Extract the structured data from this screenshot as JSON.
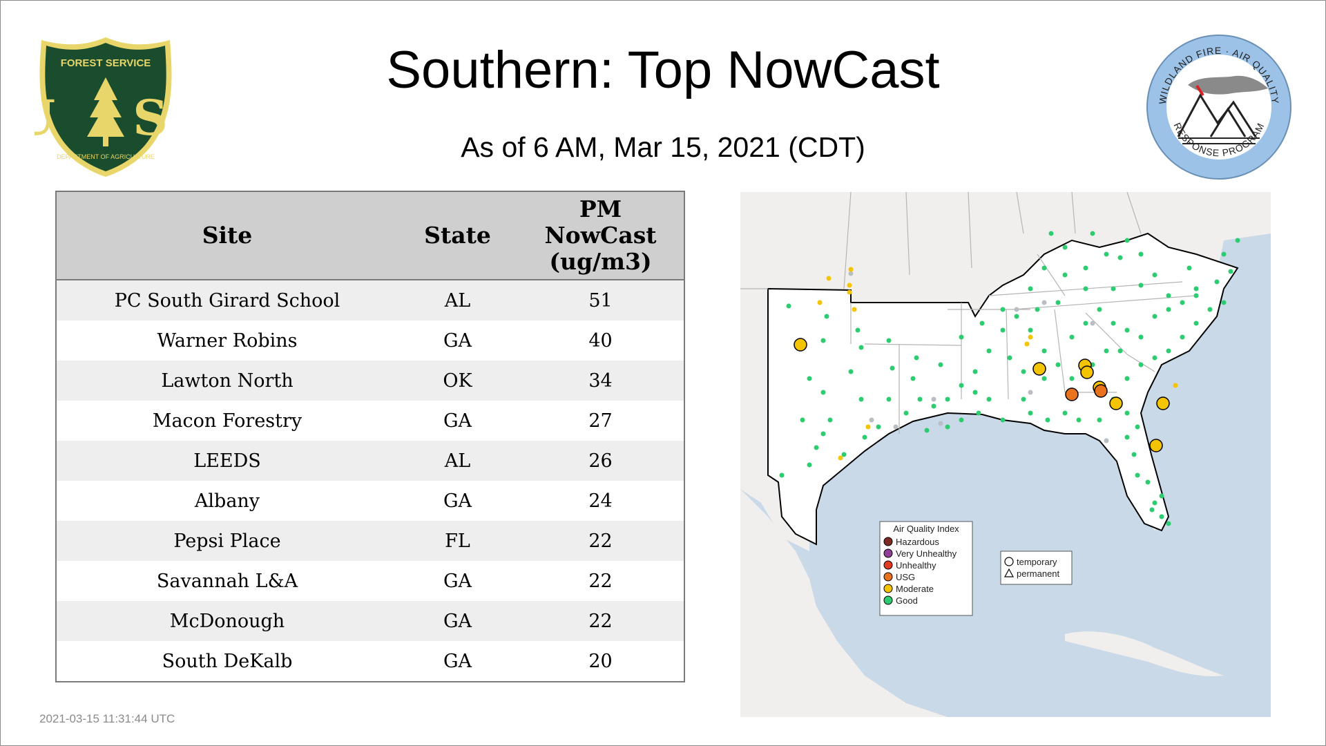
{
  "header": {
    "title": "Southern: Top NowCast",
    "subtitle": "As of  6 AM, Mar 15, 2021 (CDT)"
  },
  "logo_left": {
    "icon": "forest-service-shield-icon",
    "top_text": "FOREST SERVICE",
    "letters": "U S",
    "bottom_text": "DEPARTMENT OF AGRICULTURE",
    "colors": {
      "shield": "#1a4d2e",
      "accent": "#e8d66a"
    }
  },
  "logo_right": {
    "icon": "wildland-fire-air-quality-seal-icon",
    "top_text": "WILDLAND FIRE · AIR QUALITY",
    "bottom_text": "RESPONSE PROGRAM",
    "colors": {
      "ring": "#9cc2e8"
    }
  },
  "table": {
    "headers": {
      "site": "Site",
      "state": "State",
      "pm_line1": "PM",
      "pm_line2": "NowCast",
      "pm_line3": "(ug/m3)"
    },
    "rows": [
      {
        "site": "PC South Girard School",
        "state": "AL",
        "value": "51"
      },
      {
        "site": "Warner Robins",
        "state": "GA",
        "value": "40"
      },
      {
        "site": "Lawton North",
        "state": "OK",
        "value": "34"
      },
      {
        "site": "Macon Forestry",
        "state": "GA",
        "value": "27"
      },
      {
        "site": "LEEDS",
        "state": "AL",
        "value": "26"
      },
      {
        "site": "Albany",
        "state": "GA",
        "value": "24"
      },
      {
        "site": "Pepsi Place",
        "state": "FL",
        "value": "22"
      },
      {
        "site": "Savannah L&A",
        "state": "GA",
        "value": "22"
      },
      {
        "site": "McDonough",
        "state": "GA",
        "value": "22"
      },
      {
        "site": "South DeKalb",
        "state": "GA",
        "value": "20"
      }
    ]
  },
  "map": {
    "legend": {
      "title": "Air Quality Index",
      "items": [
        {
          "label": "Hazardous",
          "color": "#7e2b24"
        },
        {
          "label": "Very Unhealthy",
          "color": "#8f3f97"
        },
        {
          "label": "Unhealthy",
          "color": "#e03a24"
        },
        {
          "label": "USG",
          "color": "#e8731c"
        },
        {
          "label": "Moderate",
          "color": "#f5c400"
        },
        {
          "label": "Good",
          "color": "#2ecc71"
        }
      ]
    },
    "monitor_legend": {
      "temporary": "temporary",
      "permanent": "permanent"
    },
    "colors": {
      "water": "#c9d9e8",
      "land": "#f1efed",
      "region": "#ffffff",
      "border": "#b5b5b5"
    }
  },
  "timestamp": "2021-03-15 11:31:44 UTC"
}
